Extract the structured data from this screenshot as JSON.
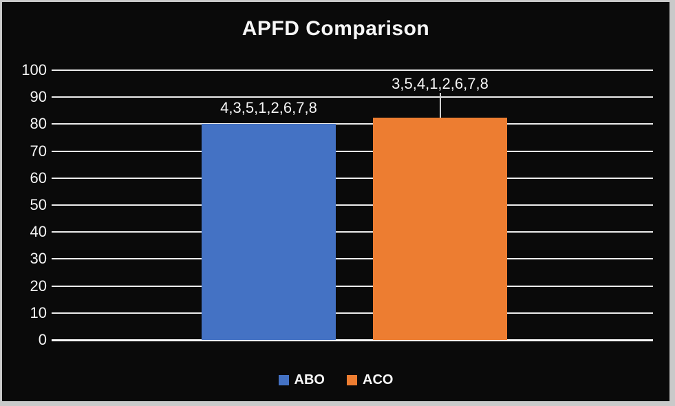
{
  "figure": {
    "title": "APFD Comparison"
  },
  "chart_data": {
    "type": "bar",
    "title": "APFD Comparison",
    "categories": [
      "ABO",
      "ACO"
    ],
    "series": [
      {
        "name": "ABO",
        "value": 80,
        "color": "#4472C4",
        "data_label": "4,3,5,1,2,6,7,8",
        "callout": false
      },
      {
        "name": "ACO",
        "value": 82.5,
        "color": "#ED7D31",
        "data_label": "3,5,4,1,2,6,7,8",
        "callout": true
      }
    ],
    "xlabel": "",
    "ylabel": "",
    "ylim": [
      0,
      100
    ],
    "ytick_step": 10,
    "ytick_labels": [
      "100",
      "90",
      "80",
      "70",
      "60",
      "50",
      "40",
      "30",
      "20",
      "10",
      "0"
    ],
    "grid": true,
    "legend": [
      {
        "label": "ABO",
        "color": "#4472C4"
      },
      {
        "label": "ACO",
        "color": "#ED7D31"
      }
    ],
    "legend_position": "bottom",
    "colors": {
      "background": "#0A0A0A",
      "frame": "#C9C9C9",
      "gridline": "#EDEDED",
      "text": "#F5F5F5",
      "abo_blue": "#4472C4",
      "aco_orange": "#ED7D31"
    }
  }
}
